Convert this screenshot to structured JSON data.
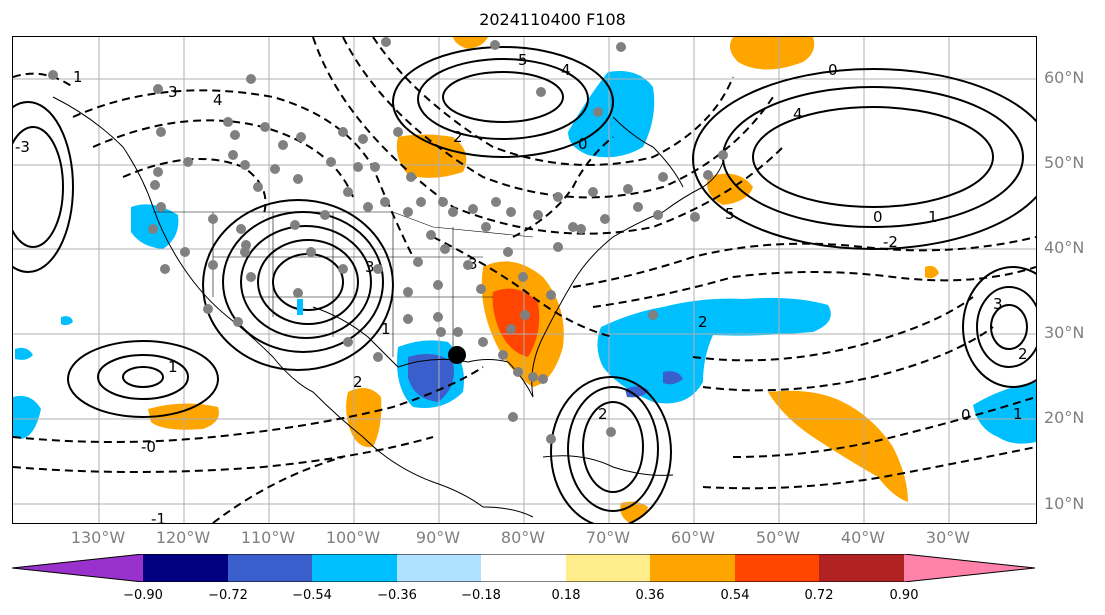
{
  "title": "2024110400 F108",
  "lat_labels": [
    "60°N",
    "50°N",
    "40°N",
    "30°N",
    "20°N",
    "10°N"
  ],
  "lon_labels": [
    "130°W",
    "120°W",
    "110°W",
    "100°W",
    "90°W",
    "80°W",
    "70°W",
    "60°W",
    "50°W",
    "40°W",
    "30°W"
  ],
  "colorbar": {
    "ticks": [
      "−0.90",
      "−0.72",
      "−0.54",
      "−0.36",
      "−0.18",
      "0.18",
      "0.36",
      "0.54",
      "0.72",
      "0.90"
    ],
    "colors": [
      "#9932cc",
      "#000080",
      "#3a5fcd",
      "#00bfff",
      "#b0e2ff",
      "#ffffff",
      "#ffec8b",
      "#ffa500",
      "#ff4500",
      "#b22222",
      "#ff82ab"
    ]
  },
  "contour_labels": [
    "5",
    "4",
    "3",
    "2",
    "1",
    "0",
    "-0",
    "-1",
    "5",
    "3",
    "4",
    "1",
    "-3",
    "-2",
    "2",
    "0",
    "3",
    "1",
    "2",
    "3",
    "2",
    "4",
    "1",
    "0",
    "2",
    "1",
    "0"
  ],
  "marked_point": "black-dot"
}
